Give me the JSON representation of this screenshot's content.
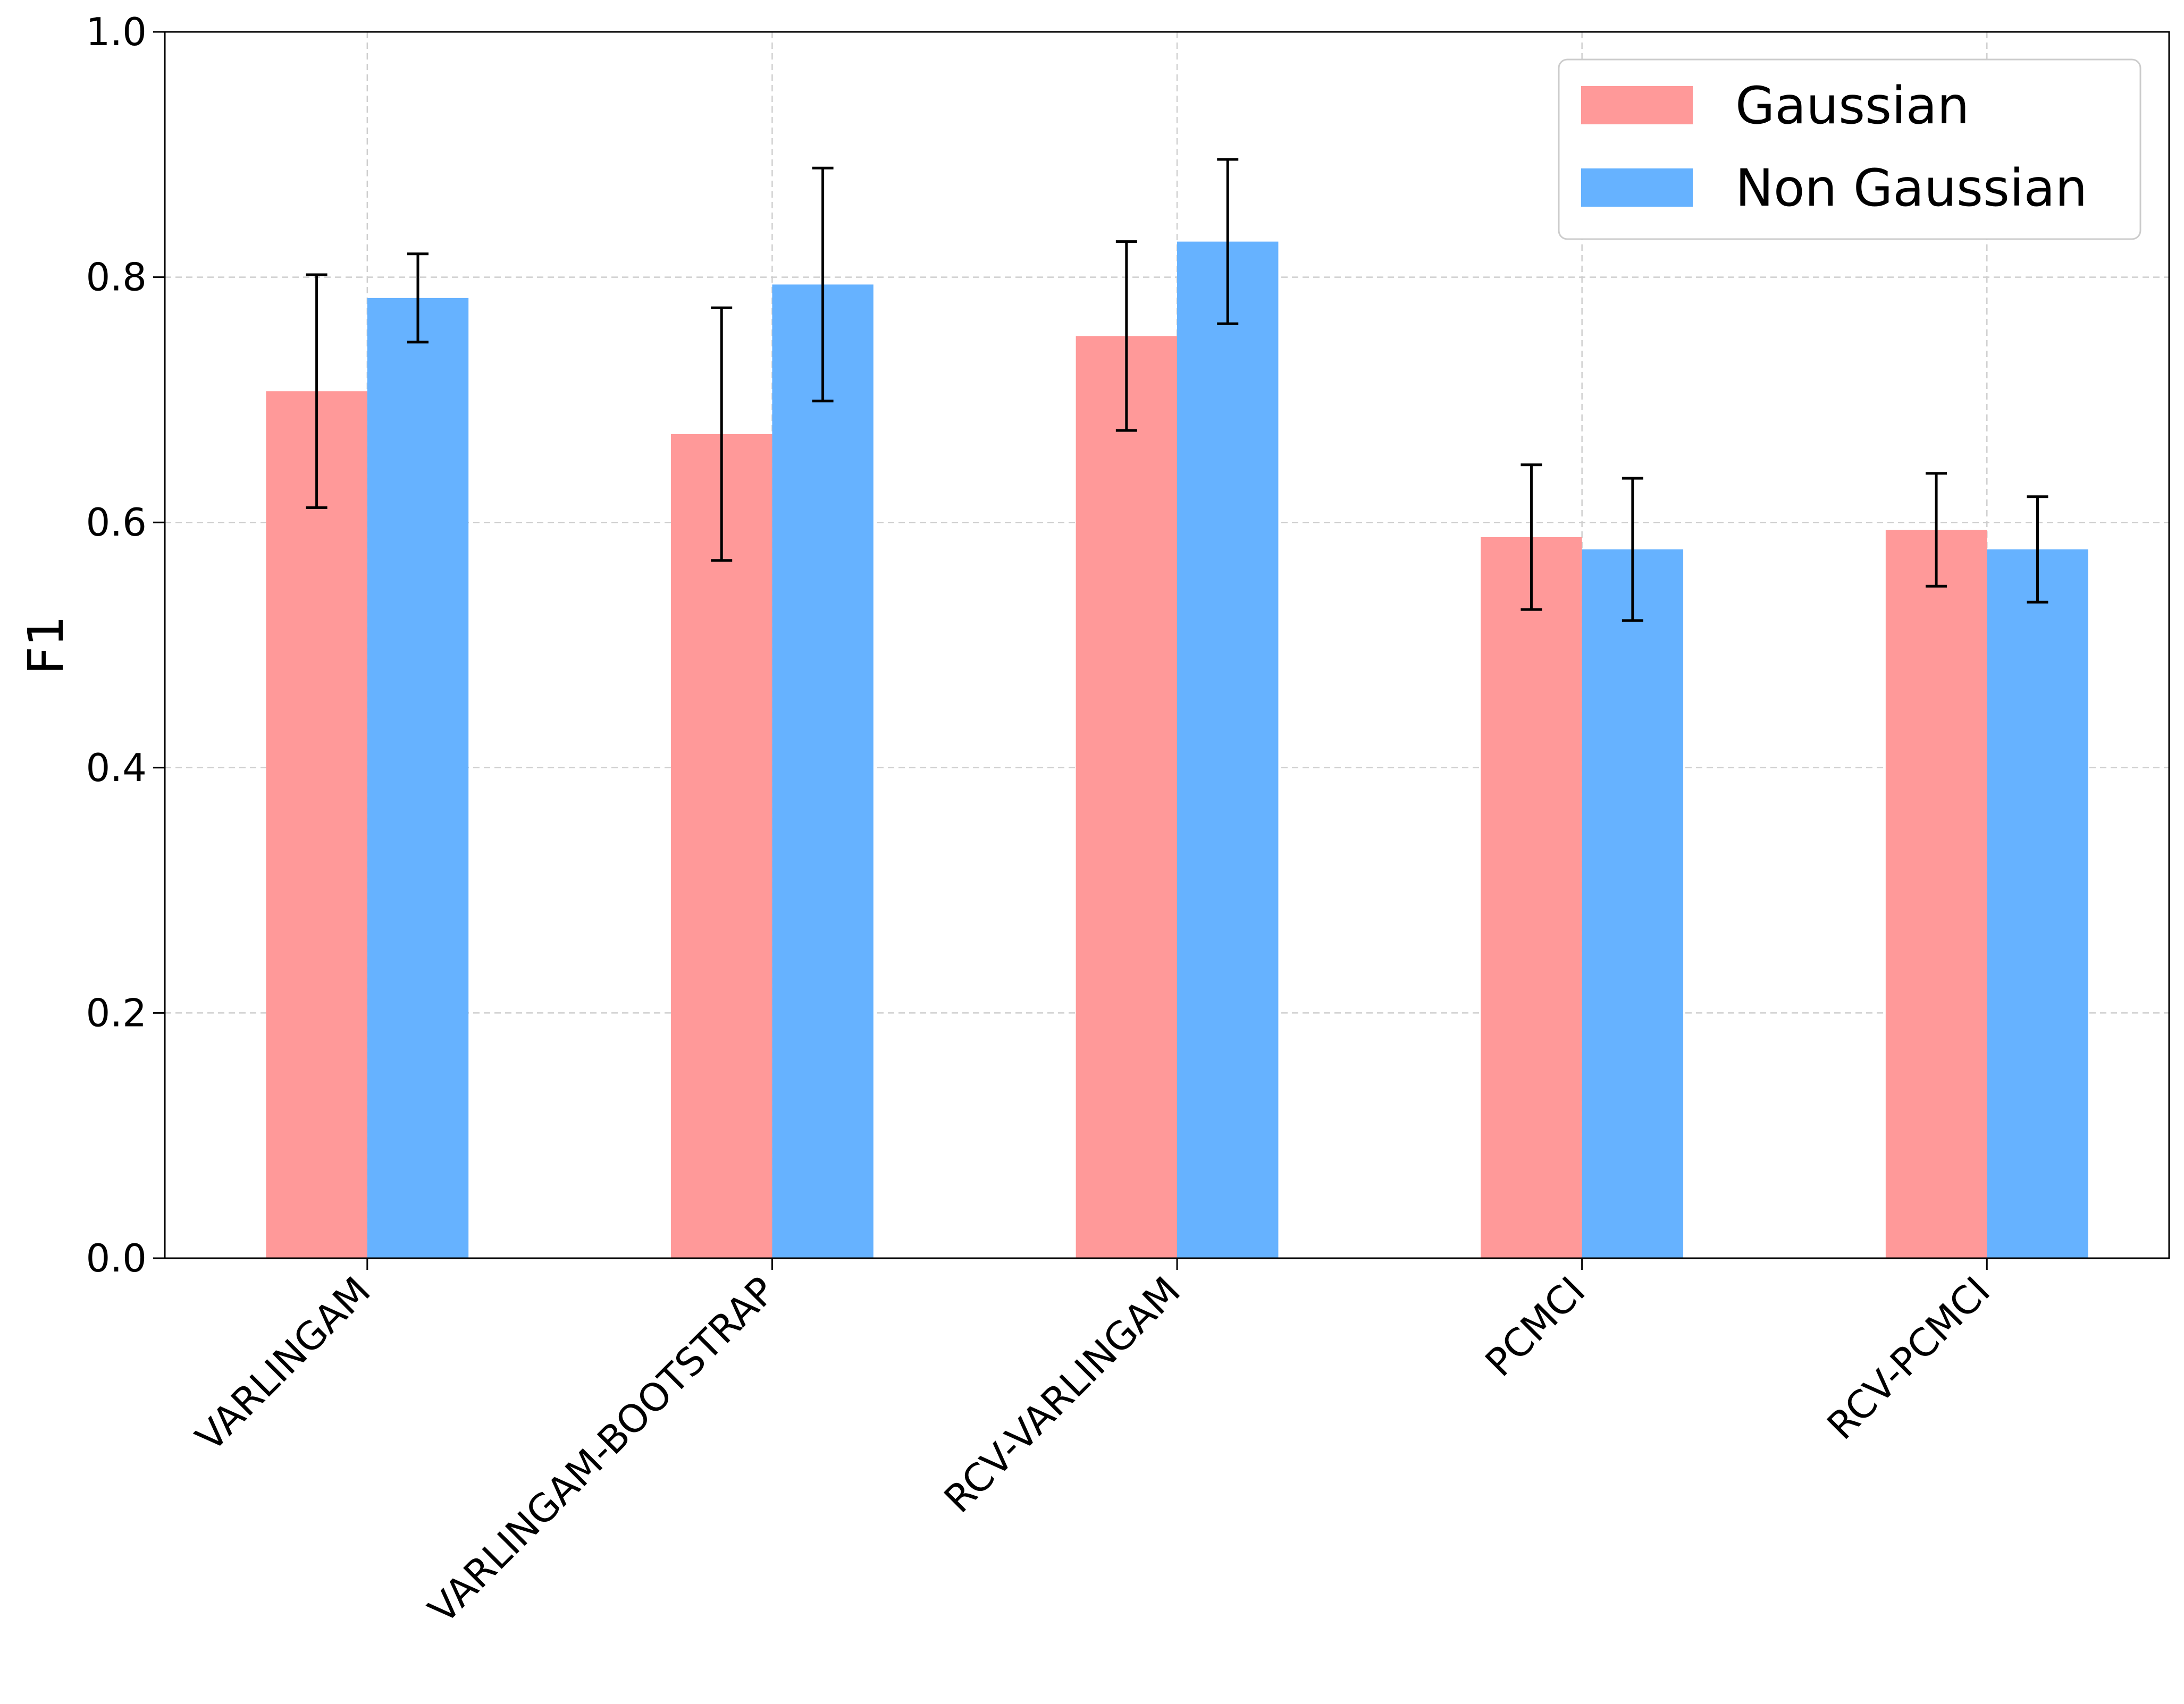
{
  "chart_data": {
    "type": "bar",
    "categories": [
      "VARLINGAM",
      "VARLINGAM-BOOTSTRAP",
      "RCV-VARLINGAM",
      "PCMCI",
      "RCV-PCMCI"
    ],
    "series": [
      {
        "name": "Gaussian",
        "color": "#ff9999",
        "values": [
          0.707,
          0.672,
          0.752,
          0.588,
          0.594
        ],
        "err_low": [
          0.612,
          0.569,
          0.675,
          0.529,
          0.548
        ],
        "err_high": [
          0.802,
          0.775,
          0.829,
          0.647,
          0.64
        ]
      },
      {
        "name": "Non Gaussian",
        "color": "#66b2ff",
        "values": [
          0.783,
          0.794,
          0.829,
          0.578,
          0.578
        ],
        "err_low": [
          0.747,
          0.699,
          0.762,
          0.52,
          0.535
        ],
        "err_high": [
          0.819,
          0.889,
          0.896,
          0.636,
          0.621
        ]
      }
    ],
    "yticks": [
      "0.0",
      "0.2",
      "0.4",
      "0.6",
      "0.8",
      "1.0"
    ],
    "ylabel": "F1",
    "xlabel": "",
    "title": "",
    "ylim": [
      0,
      1
    ],
    "grid": true,
    "legend_position": "top-right"
  }
}
